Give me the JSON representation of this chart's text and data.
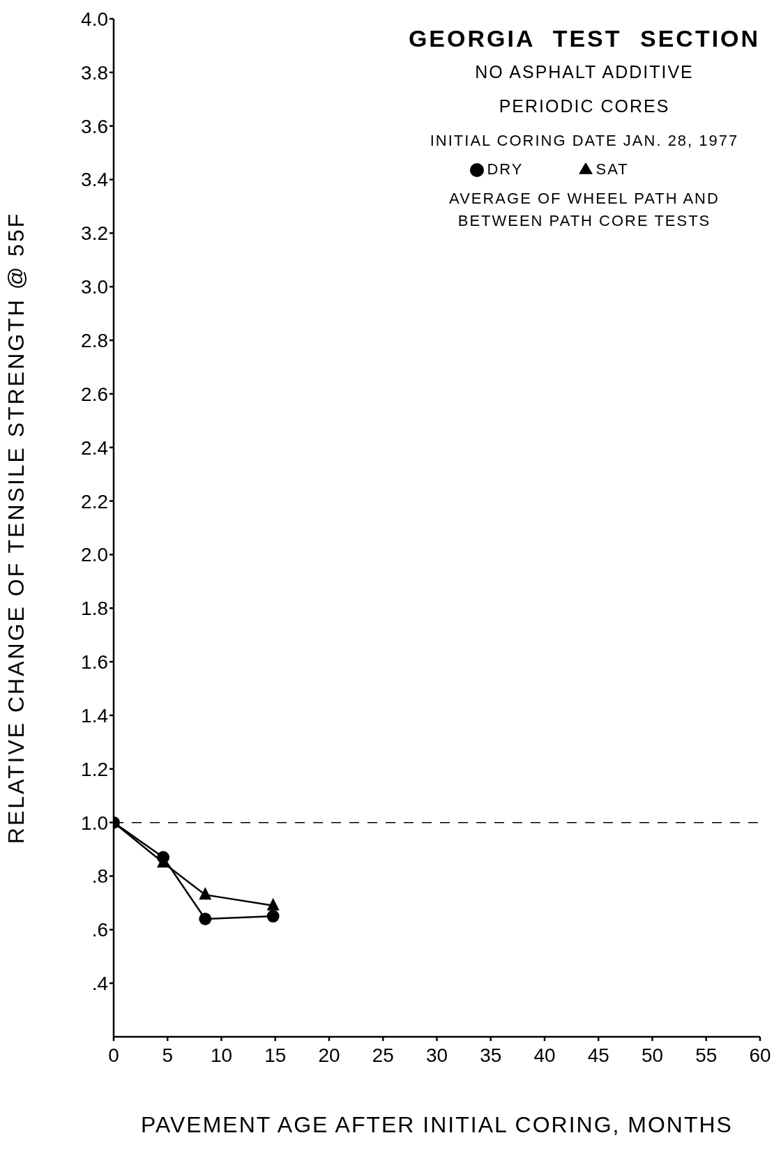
{
  "chart_data": {
    "type": "line",
    "title": "GEORGIA TEST SECTION",
    "subtitle": "NO ASPHALT ADDITIVE",
    "annotations": [
      "PERIODIC CORES",
      "INITIAL CORING DATE JAN. 28, 1977",
      "AVERAGE OF WHEEL PATH AND BETWEEN PATH CORE TESTS"
    ],
    "xlabel": "PAVEMENT AGE AFTER INITIAL CORING, MONTHS",
    "ylabel": "RELATIVE CHANGE OF TENSILE STRENGTH @ 55F",
    "x": [
      0,
      4.6,
      8.5,
      14.8
    ],
    "series": [
      {
        "name": "DRY",
        "color": "#000000",
        "marker": "circle",
        "values": [
          1.0,
          0.87,
          0.64,
          0.65
        ]
      },
      {
        "name": "SAT",
        "color": "#000000",
        "marker": "triangle",
        "values": [
          1.0,
          0.85,
          0.73,
          0.69
        ]
      }
    ],
    "xlim": [
      0,
      60
    ],
    "xticks": [
      0,
      5,
      10,
      15,
      20,
      25,
      30,
      35,
      40,
      45,
      50,
      55,
      60
    ],
    "ylim": [
      0.2,
      4.0
    ],
    "yticks": [
      {
        "value": 0.4,
        "label": ".4"
      },
      {
        "value": 0.6,
        "label": ".6"
      },
      {
        "value": 0.8,
        "label": ".8"
      },
      {
        "value": 1.0,
        "label": "1.0"
      },
      {
        "value": 1.2,
        "label": "1.2"
      },
      {
        "value": 1.4,
        "label": "1.4"
      },
      {
        "value": 1.6,
        "label": "1.6"
      },
      {
        "value": 1.8,
        "label": "1.8"
      },
      {
        "value": 2.0,
        "label": "2.0"
      },
      {
        "value": 2.2,
        "label": "2.2"
      },
      {
        "value": 2.4,
        "label": "2.4"
      },
      {
        "value": 2.6,
        "label": "2.6"
      },
      {
        "value": 2.8,
        "label": "2.8"
      },
      {
        "value": 3.0,
        "label": "3.0"
      },
      {
        "value": 3.2,
        "label": "3.2"
      },
      {
        "value": 3.4,
        "label": "3.4"
      },
      {
        "value": 3.6,
        "label": "3.6"
      },
      {
        "value": 3.8,
        "label": "3.8"
      },
      {
        "value": 4.0,
        "label": "4.0"
      }
    ],
    "ref_lines": [
      {
        "axis": "y",
        "value": 1.0,
        "color": "#000000",
        "line_style": "dashed"
      }
    ],
    "legend": "top right",
    "grid": false,
    "line_style": "solid"
  }
}
